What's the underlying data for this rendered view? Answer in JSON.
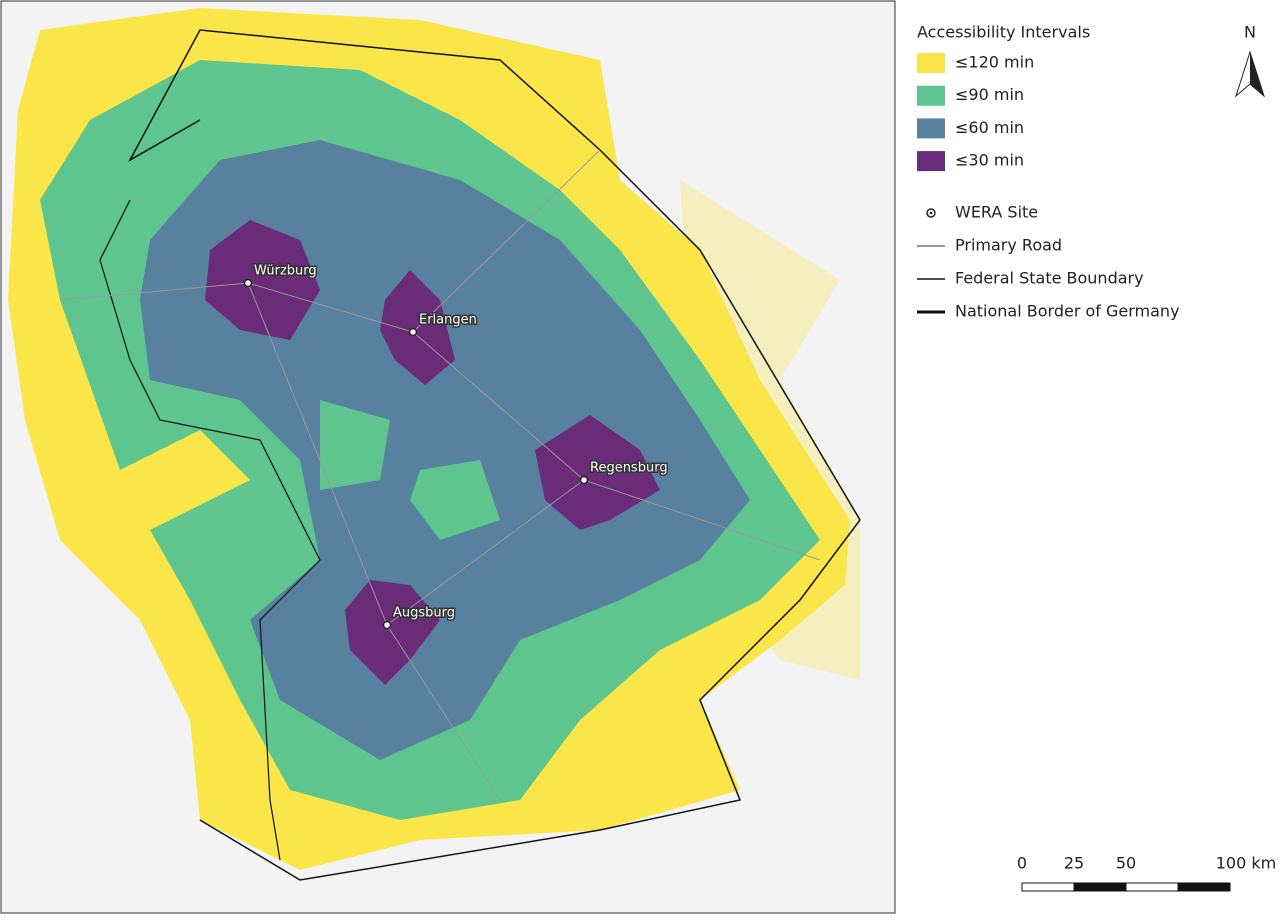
{
  "legend": {
    "title": "Accessibility Intervals",
    "items": [
      {
        "label": "≤120 min",
        "color": "#fbe64a"
      },
      {
        "label": "≤90 min",
        "color": "#5ec58f"
      },
      {
        "label": "≤60 min",
        "color": "#58809f"
      },
      {
        "label": "≤30 min",
        "color": "#6a2b78"
      }
    ],
    "features": [
      "WERA Site",
      "Primary Road",
      "Federal State Boundary",
      "National Border of Germany"
    ]
  },
  "sites": [
    "Würzburg",
    "Erlangen",
    "Regensburg",
    "Augsburg"
  ],
  "north_arrow": "N",
  "scale_bar": [
    "0",
    "25",
    "50",
    "100 km"
  ]
}
